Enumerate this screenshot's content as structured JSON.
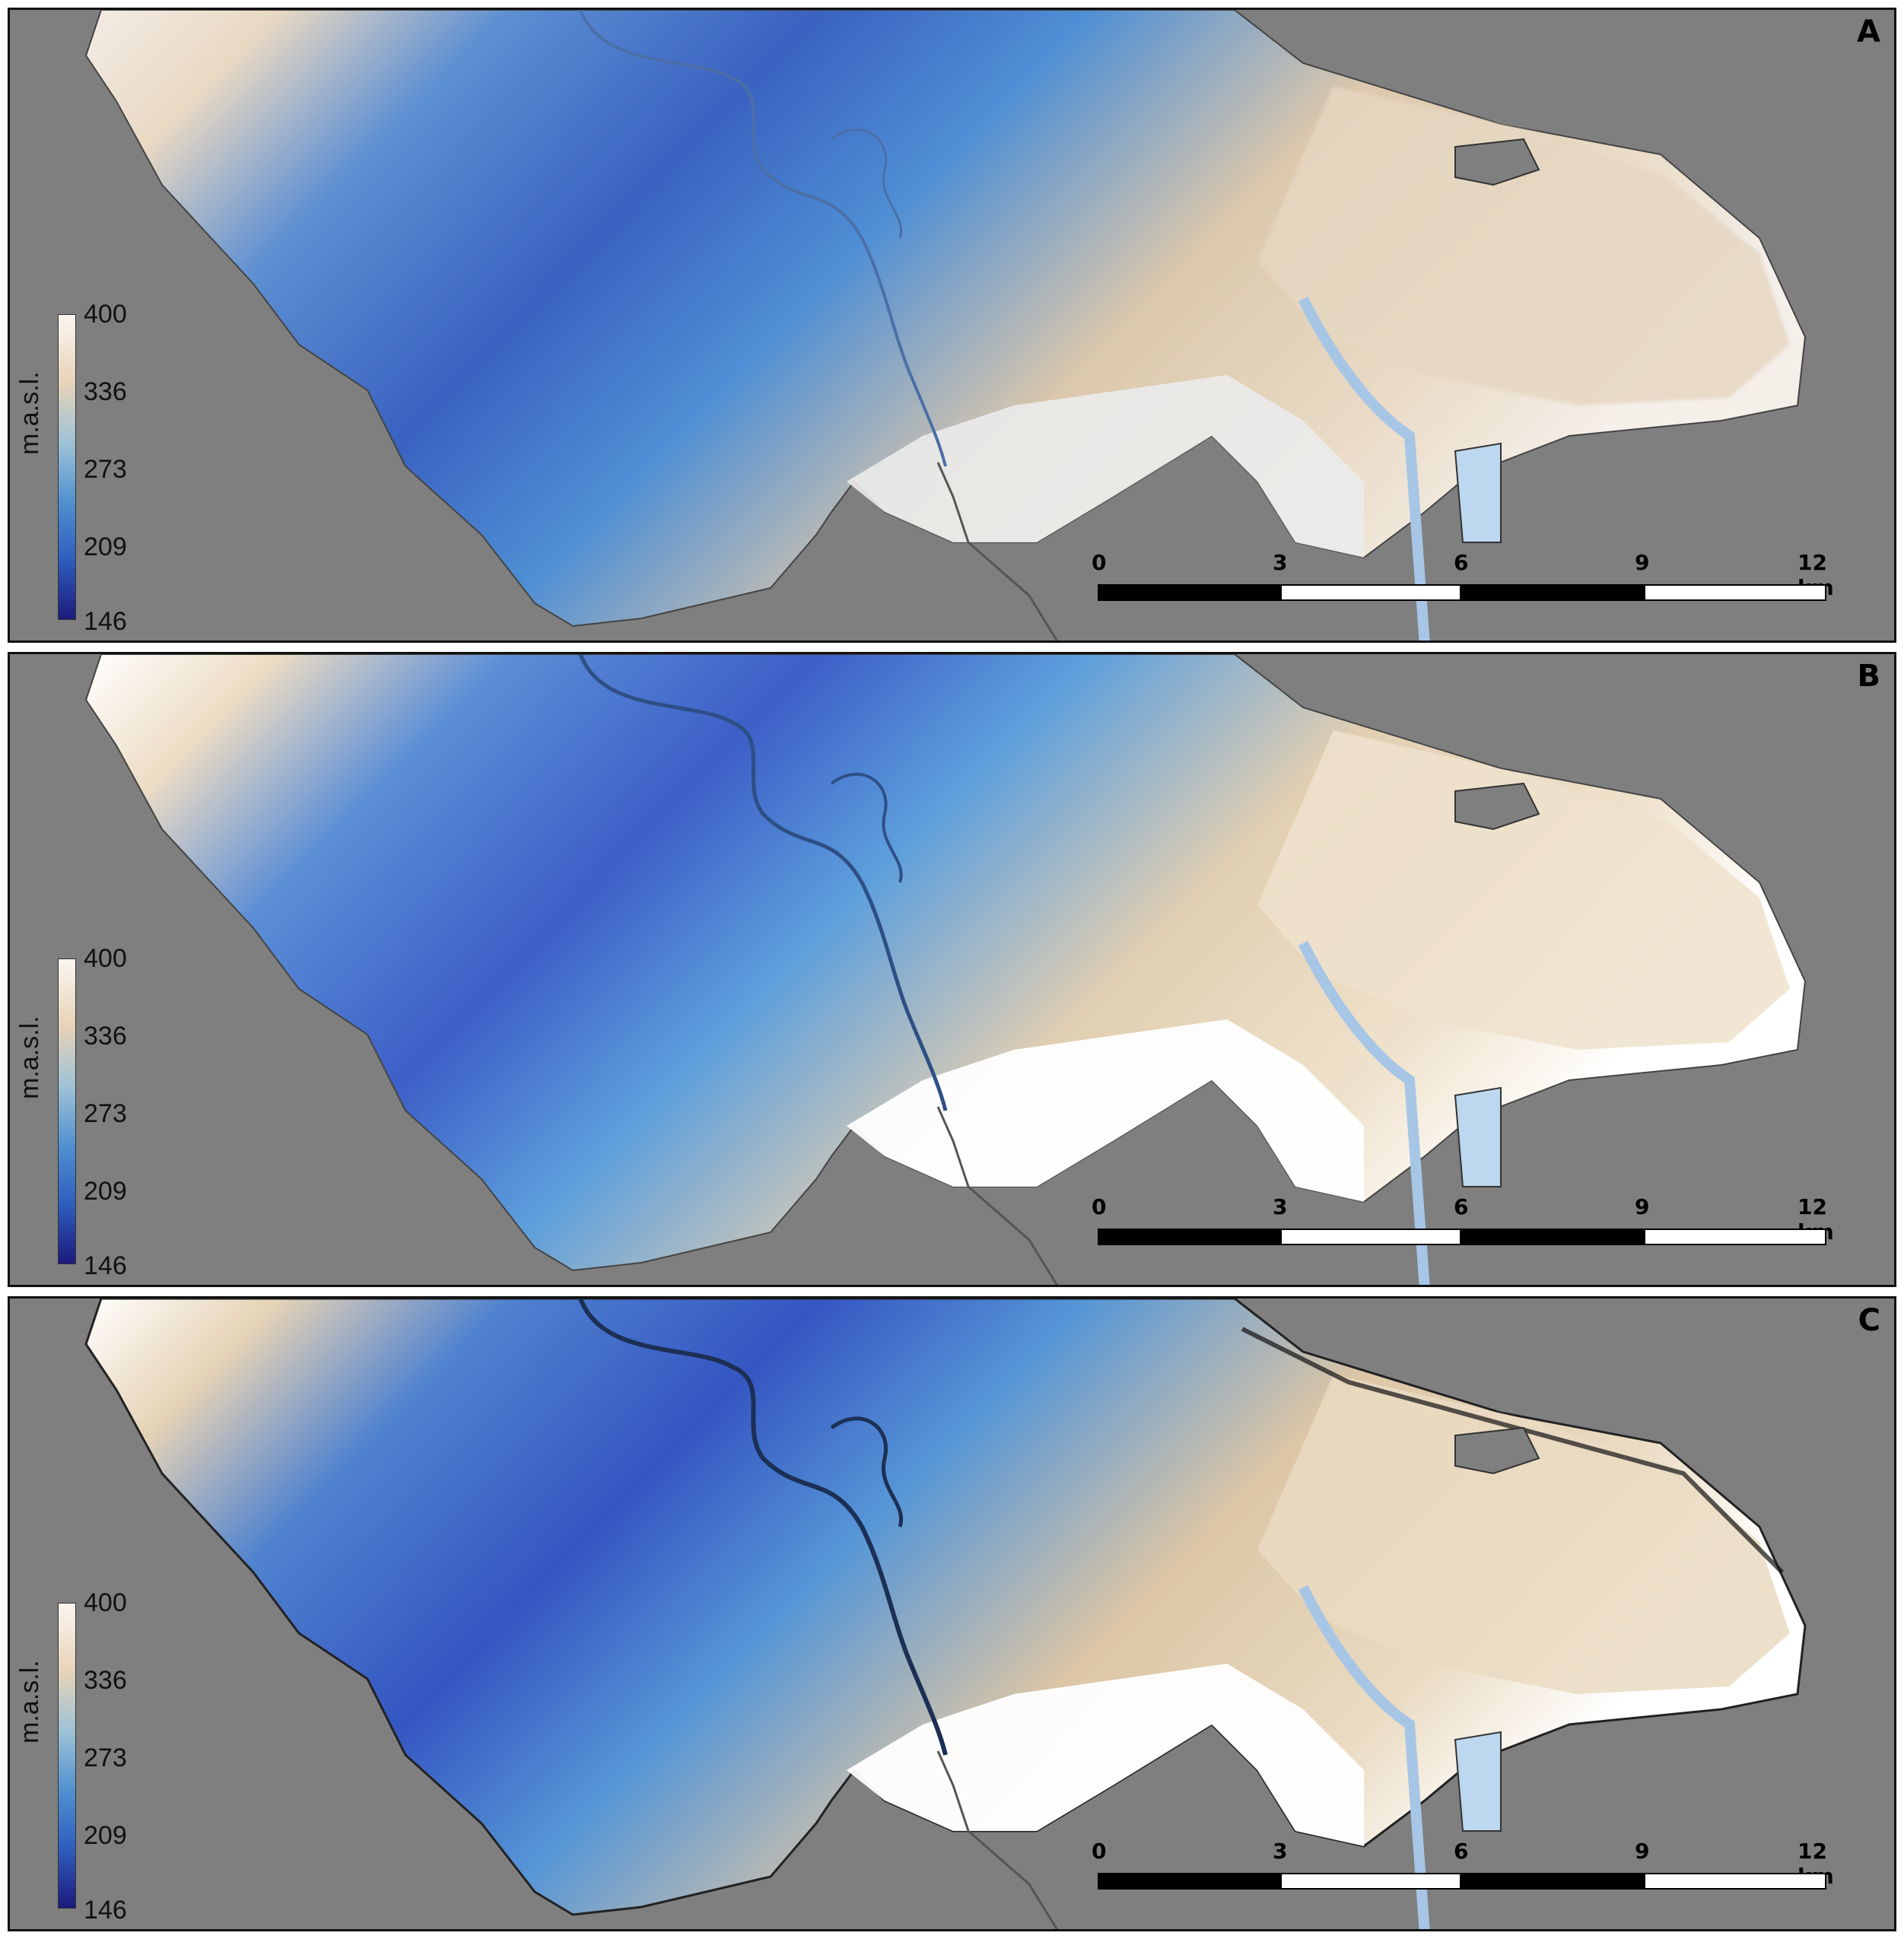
{
  "panels": [
    {
      "letter": "A",
      "style": "smooth"
    },
    {
      "letter": "B",
      "style": "medium"
    },
    {
      "letter": "C",
      "style": "rough"
    }
  ],
  "legend": {
    "unit": "m.a.s.l.",
    "ticks": [
      "400",
      "336",
      "273",
      "209",
      "146"
    ]
  },
  "scalebar": {
    "labels": [
      "0",
      "3",
      "6",
      "9",
      "12 km"
    ]
  },
  "colors": {
    "background": "#7f7f7f",
    "land_low": "#1c1a7c",
    "land_mid": "#4f8fcf",
    "land_high": "#e7d3b8",
    "land_top": "#fbf6f1",
    "water": "#bcd7ee"
  }
}
